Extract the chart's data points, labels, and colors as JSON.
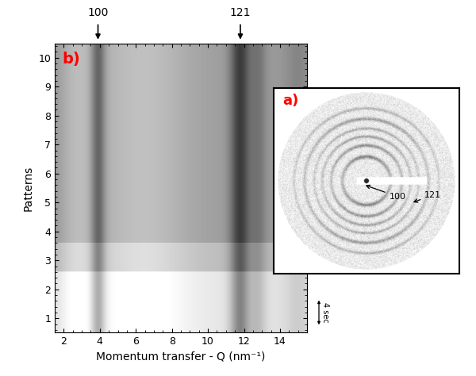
{
  "xlabel": "Momentum transfer - Q (nm⁻¹)",
  "ylabel": "Patterns",
  "xlim": [
    1.5,
    15.5
  ],
  "ylim": [
    0.5,
    10.5
  ],
  "xticks": [
    2,
    4,
    6,
    8,
    10,
    12,
    14
  ],
  "yticks": [
    1,
    2,
    3,
    4,
    5,
    6,
    7,
    8,
    9,
    10
  ],
  "label_b": "b)",
  "label_a": "a)",
  "peak_100_q": 3.9,
  "peak_121_q": 11.8,
  "fig_bg": "#ffffff"
}
